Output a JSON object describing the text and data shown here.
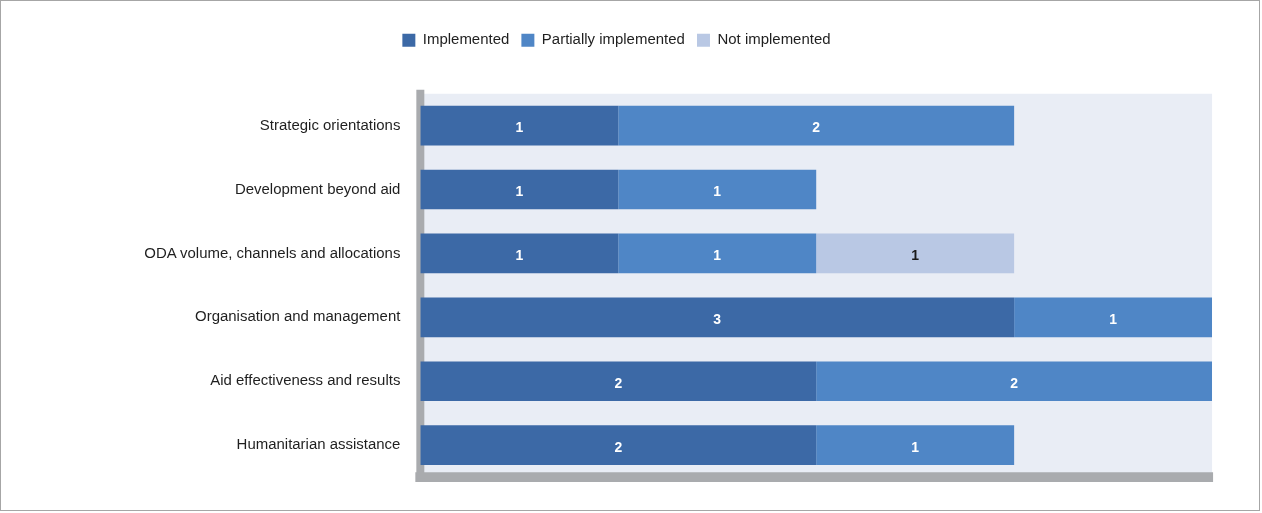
{
  "chart_data": {
    "type": "bar",
    "orientation": "horizontal",
    "stacked": true,
    "categories": [
      "Strategic orientations",
      "Development beyond aid",
      "ODA volume, channels and allocations",
      "Organisation and management",
      "Aid effectiveness and results",
      "Humanitarian assistance"
    ],
    "series": [
      {
        "name": "Implemented",
        "color": "#3c69a6",
        "values": [
          1,
          1,
          1,
          3,
          2,
          2
        ]
      },
      {
        "name": "Partially implemented",
        "color": "#4f86c6",
        "values": [
          2,
          1,
          1,
          1,
          2,
          1
        ]
      },
      {
        "name": "Not implemented",
        "color": "#b9c8e4",
        "values": [
          null,
          null,
          1,
          null,
          null,
          null
        ]
      }
    ],
    "xlim": [
      0,
      4
    ],
    "tick_labels": "y",
    "grid": false,
    "legend": "top",
    "data_labels": true
  }
}
